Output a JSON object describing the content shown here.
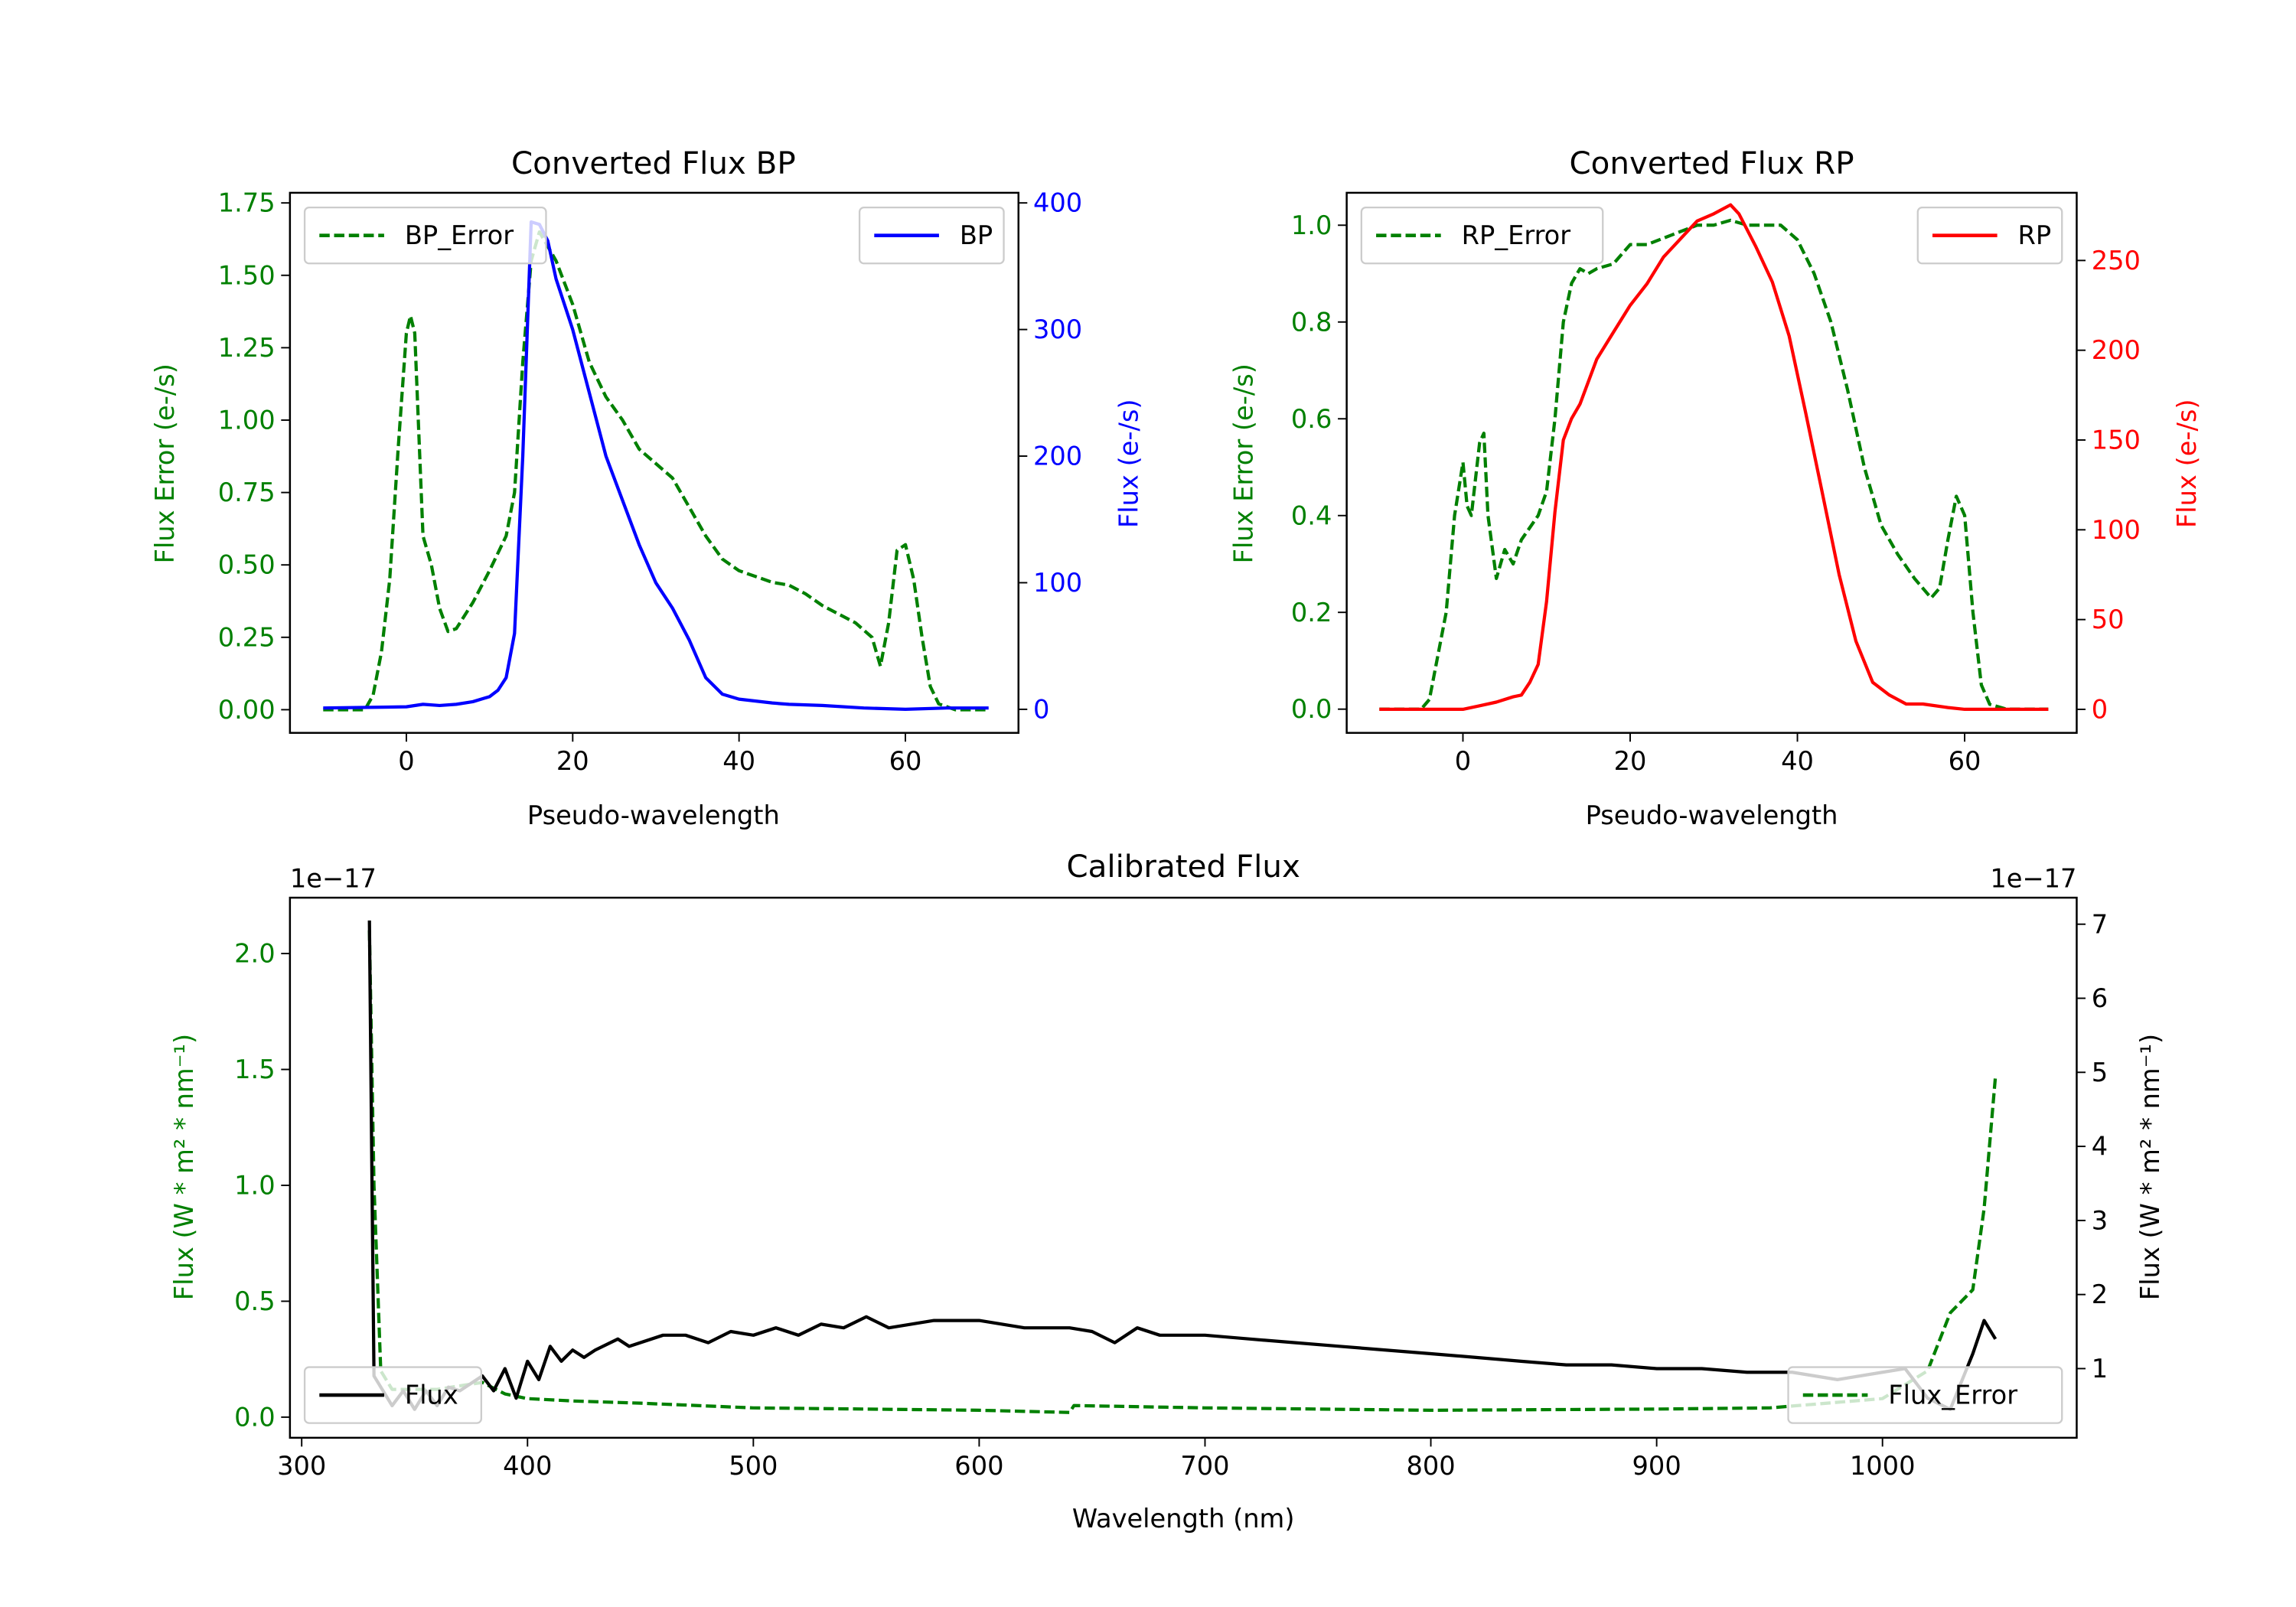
{
  "colors": {
    "green": "#008000",
    "blue": "#0000ff",
    "red": "#ff0000",
    "black": "#000000"
  },
  "chart_data": [
    {
      "type": "line",
      "title": "Converted Flux BP",
      "xlabel": "Pseudo-wavelength",
      "ylabel_left": "Flux Error (e-/s)",
      "ylabel_right": "Flux (e-/s)",
      "xlim": [
        -14,
        73.6
      ],
      "ylim_left": [
        -0.08,
        1.785
      ],
      "ylim_right": [
        -18.6,
        408
      ],
      "xticks": [
        "0",
        "20",
        "40",
        "60"
      ],
      "yticks_left": [
        "0.00",
        "0.25",
        "0.50",
        "0.75",
        "1.00",
        "1.25",
        "1.50",
        "1.75"
      ],
      "yticks_right": [
        "0",
        "100",
        "200",
        "300",
        "400"
      ],
      "left_color": "#008000",
      "right_color": "#0000ff",
      "series": [
        {
          "name": "BP_Error",
          "axis": "left",
          "dashed": true,
          "color": "#008000",
          "x": [
            -10,
            -5,
            -4,
            -3,
            -2,
            -1,
            0,
            0.5,
            1,
            2,
            3,
            4,
            5,
            6,
            8,
            10,
            12,
            13,
            14,
            15,
            16,
            17,
            18,
            20,
            22,
            24,
            26,
            28,
            30,
            32,
            34,
            36,
            38,
            40,
            44,
            46,
            48,
            50,
            54,
            56,
            57,
            58,
            59,
            60,
            61,
            62,
            63,
            64,
            66,
            70
          ],
          "y": [
            0,
            0,
            0.05,
            0.2,
            0.45,
            0.9,
            1.3,
            1.36,
            1.3,
            0.6,
            0.5,
            0.35,
            0.27,
            0.28,
            0.37,
            0.48,
            0.6,
            0.75,
            1.2,
            1.55,
            1.65,
            1.6,
            1.55,
            1.4,
            1.2,
            1.08,
            1.0,
            0.9,
            0.85,
            0.8,
            0.7,
            0.6,
            0.52,
            0.48,
            0.44,
            0.43,
            0.4,
            0.36,
            0.3,
            0.25,
            0.15,
            0.3,
            0.55,
            0.57,
            0.45,
            0.25,
            0.08,
            0.02,
            0,
            0
          ]
        },
        {
          "name": "BP",
          "axis": "right",
          "dashed": false,
          "color": "#0000ff",
          "x": [
            -10,
            0,
            2,
            4,
            6,
            8,
            10,
            11,
            12,
            13,
            14,
            15,
            16,
            17,
            18,
            20,
            22,
            24,
            26,
            28,
            30,
            32,
            34,
            36,
            38,
            40,
            44,
            46,
            50,
            55,
            60,
            65,
            70
          ],
          "y": [
            1,
            2,
            4,
            3,
            4,
            6,
            10,
            15,
            25,
            60,
            200,
            385,
            383,
            370,
            340,
            300,
            250,
            200,
            165,
            130,
            100,
            80,
            55,
            25,
            12,
            8,
            5,
            4,
            3,
            1,
            0,
            1,
            1
          ]
        }
      ],
      "legends": [
        {
          "label": "BP_Error",
          "placement": "upper-left"
        },
        {
          "label": "BP",
          "placement": "upper-right"
        }
      ]
    },
    {
      "type": "line",
      "title": "Converted Flux RP",
      "xlabel": "Pseudo-wavelength",
      "ylabel_left": "Flux Error (e-/s)",
      "ylabel_right": "Flux (e-/s)",
      "xlim": [
        -13.9,
        73.4
      ],
      "ylim_left": [
        -0.049,
        1.067
      ],
      "ylim_right": [
        -13.1,
        287.7
      ],
      "xticks": [
        "0",
        "20",
        "40",
        "60"
      ],
      "yticks_left": [
        "0.0",
        "0.2",
        "0.4",
        "0.6",
        "0.8",
        "1.0"
      ],
      "yticks_right": [
        "0",
        "50",
        "100",
        "150",
        "200",
        "250"
      ],
      "left_color": "#008000",
      "right_color": "#ff0000",
      "series": [
        {
          "name": "RP_Error",
          "axis": "left",
          "dashed": true,
          "color": "#008000",
          "x": [
            -10,
            -5,
            -4,
            -2,
            -1,
            0,
            0.5,
            1,
            2,
            2.5,
            3,
            4,
            5,
            6,
            7,
            9,
            10,
            11,
            12,
            13,
            14,
            15,
            16,
            18,
            20,
            22,
            25,
            28,
            30,
            32,
            34,
            36,
            38,
            40,
            42,
            44,
            46,
            48,
            50,
            52,
            54,
            56,
            57,
            58,
            59,
            60,
            61,
            62,
            63,
            65,
            70
          ],
          "y": [
            0,
            0,
            0.02,
            0.2,
            0.4,
            0.51,
            0.42,
            0.4,
            0.55,
            0.57,
            0.4,
            0.27,
            0.33,
            0.3,
            0.35,
            0.4,
            0.45,
            0.6,
            0.8,
            0.88,
            0.91,
            0.9,
            0.91,
            0.92,
            0.96,
            0.96,
            0.98,
            1.0,
            1.0,
            1.01,
            1.0,
            1.0,
            1.0,
            0.97,
            0.9,
            0.8,
            0.66,
            0.5,
            0.38,
            0.32,
            0.27,
            0.23,
            0.25,
            0.35,
            0.44,
            0.4,
            0.2,
            0.05,
            0.01,
            0,
            0
          ]
        },
        {
          "name": "RP",
          "axis": "right",
          "dashed": false,
          "color": "#ff0000",
          "x": [
            -10,
            0,
            2,
            4,
            6,
            7,
            8,
            9,
            10,
            11,
            12,
            13,
            14,
            16,
            18,
            20,
            22,
            24,
            26,
            28,
            30,
            32,
            33,
            35,
            37,
            39,
            41,
            43,
            45,
            47,
            49,
            51,
            53,
            55,
            58,
            60,
            70
          ],
          "y": [
            0,
            0,
            2,
            4,
            7,
            8,
            15,
            25,
            60,
            110,
            150,
            162,
            170,
            195,
            210,
            225,
            237,
            252,
            262,
            272,
            276,
            281,
            276,
            258,
            238,
            208,
            165,
            120,
            75,
            38,
            15,
            8,
            3,
            3,
            1,
            0,
            0
          ]
        }
      ],
      "legends": [
        {
          "label": "RP_Error",
          "placement": "upper-left"
        },
        {
          "label": "RP",
          "placement": "upper-right"
        }
      ]
    },
    {
      "type": "line",
      "title": "Calibrated Flux",
      "xlabel": "Wavelength (nm)",
      "ylabel_left": "Flux (W * m² * nm⁻¹)",
      "ylabel_right": "Flux (W * m² * nm⁻¹)",
      "offset_left": "1e−17",
      "offset_right": "1e−17",
      "xlim": [
        294.8,
        1086
      ],
      "ylim_left": [
        -0.089,
        2.241
      ],
      "ylim_right": [
        0.066,
        7.358
      ],
      "xticks": [
        "300",
        "400",
        "500",
        "600",
        "700",
        "800",
        "900",
        "1000"
      ],
      "yticks_left": [
        "0.0",
        "0.5",
        "1.0",
        "1.5",
        "2.0"
      ],
      "yticks_right": [
        "1",
        "2",
        "3",
        "4",
        "5",
        "6",
        "7"
      ],
      "left_color": "#008000",
      "right_color": "#000000",
      "series": [
        {
          "name": "Flux_Error",
          "axis": "left",
          "dashed": true,
          "color": "#008000",
          "x": [
            330,
            332,
            335,
            340,
            360,
            380,
            390,
            400,
            420,
            450,
            500,
            600,
            640,
            642,
            700,
            800,
            900,
            950,
            1000,
            1020,
            1030,
            1040,
            1045,
            1050
          ],
          "y": [
            2.1,
            1.0,
            0.2,
            0.12,
            0.12,
            0.15,
            0.1,
            0.08,
            0.07,
            0.06,
            0.04,
            0.03,
            0.02,
            0.05,
            0.04,
            0.03,
            0.035,
            0.04,
            0.08,
            0.2,
            0.45,
            0.55,
            0.9,
            1.47
          ]
        },
        {
          "name": "Flux",
          "axis": "right",
          "dashed": false,
          "color": "#000000",
          "x": [
            330,
            331,
            332,
            340,
            345,
            350,
            355,
            360,
            365,
            370,
            380,
            385,
            390,
            395,
            400,
            405,
            410,
            415,
            420,
            425,
            430,
            440,
            445,
            460,
            470,
            480,
            490,
            500,
            510,
            520,
            530,
            540,
            550,
            560,
            580,
            600,
            620,
            640,
            650,
            660,
            670,
            680,
            700,
            720,
            740,
            760,
            780,
            800,
            820,
            840,
            860,
            880,
            900,
            920,
            940,
            960,
            980,
            1000,
            1010,
            1020,
            1030,
            1040,
            1045,
            1050
          ],
          "y": [
            7.05,
            4,
            0.9,
            0.5,
            0.7,
            0.45,
            0.7,
            0.5,
            0.75,
            0.7,
            0.9,
            0.7,
            1.0,
            0.6,
            1.1,
            0.85,
            1.3,
            1.1,
            1.25,
            1.15,
            1.25,
            1.4,
            1.3,
            1.45,
            1.45,
            1.35,
            1.5,
            1.45,
            1.55,
            1.45,
            1.6,
            1.55,
            1.7,
            1.55,
            1.65,
            1.65,
            1.55,
            1.55,
            1.5,
            1.35,
            1.55,
            1.45,
            1.45,
            1.4,
            1.35,
            1.3,
            1.25,
            1.2,
            1.15,
            1.1,
            1.05,
            1.05,
            1.0,
            1.0,
            0.95,
            0.95,
            0.85,
            0.95,
            1.0,
            0.6,
            0.45,
            1.2,
            1.65,
            1.4
          ]
        }
      ],
      "legends": [
        {
          "label": "Flux",
          "placement": "lower-left"
        },
        {
          "label": "Flux_Error",
          "placement": "lower-right"
        }
      ]
    }
  ]
}
